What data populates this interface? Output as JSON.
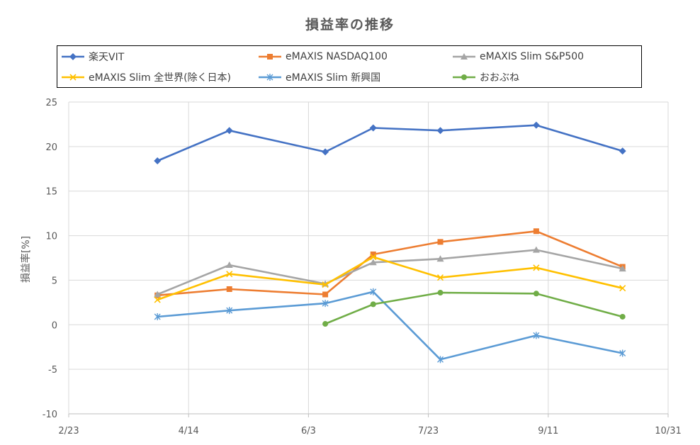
{
  "chart_data": {
    "type": "line",
    "title": "損益率の推移",
    "xlabel": "",
    "ylabel": "損益率[%]",
    "ylim": [
      -10,
      25
    ],
    "yticks": [
      25,
      20,
      15,
      10,
      5,
      0,
      -5,
      -10
    ],
    "xlim": [
      "2/23",
      "10/31"
    ],
    "xticks": [
      "2/23",
      "4/14",
      "6/3",
      "7/23",
      "9/11",
      "10/31"
    ],
    "grid": true,
    "legend_position": "top",
    "series": [
      {
        "name": "楽天VIT",
        "color": "#4472C4",
        "marker": "diamond",
        "points": [
          [
            "4/1",
            18.4
          ],
          [
            "5/1",
            21.8
          ],
          [
            "6/10",
            19.4
          ],
          [
            "6/30",
            22.1
          ],
          [
            "7/28",
            21.8
          ],
          [
            "9/6",
            22.4
          ],
          [
            "10/12",
            19.5
          ]
        ]
      },
      {
        "name": "eMAXIS NASDAQ100",
        "color": "#ED7D31",
        "marker": "square",
        "points": [
          [
            "4/1",
            3.3
          ],
          [
            "5/1",
            4.0
          ],
          [
            "6/10",
            3.4
          ],
          [
            "6/30",
            7.9
          ],
          [
            "7/28",
            9.3
          ],
          [
            "9/6",
            10.5
          ],
          [
            "10/12",
            6.5
          ]
        ]
      },
      {
        "name": "eMAXIS Slim S&P500",
        "color": "#A5A5A5",
        "marker": "triangle",
        "points": [
          [
            "4/1",
            3.4
          ],
          [
            "5/1",
            6.7
          ],
          [
            "6/10",
            4.6
          ],
          [
            "6/30",
            7.0
          ],
          [
            "7/28",
            7.4
          ],
          [
            "9/6",
            8.4
          ],
          [
            "10/12",
            6.3
          ]
        ]
      },
      {
        "name": "eMAXIS Slim 全世界(除く日本)",
        "color": "#FFC000",
        "marker": "x",
        "points": [
          [
            "4/1",
            2.8
          ],
          [
            "5/1",
            5.7
          ],
          [
            "6/10",
            4.5
          ],
          [
            "6/30",
            7.6
          ],
          [
            "7/28",
            5.3
          ],
          [
            "9/6",
            6.4
          ],
          [
            "10/12",
            4.1
          ]
        ]
      },
      {
        "name": "eMAXIS Slim 新興国",
        "color": "#5B9BD5",
        "marker": "star",
        "points": [
          [
            "4/1",
            0.9
          ],
          [
            "5/1",
            1.6
          ],
          [
            "6/10",
            2.4
          ],
          [
            "6/30",
            3.7
          ],
          [
            "7/28",
            -3.9
          ],
          [
            "9/6",
            -1.2
          ],
          [
            "10/12",
            -3.2
          ]
        ]
      },
      {
        "name": "おおぶね",
        "color": "#70AD47",
        "marker": "circle",
        "points": [
          [
            "6/10",
            0.1
          ],
          [
            "6/30",
            2.3
          ],
          [
            "7/28",
            3.6
          ],
          [
            "9/6",
            3.5
          ],
          [
            "10/12",
            0.9
          ]
        ]
      }
    ]
  }
}
